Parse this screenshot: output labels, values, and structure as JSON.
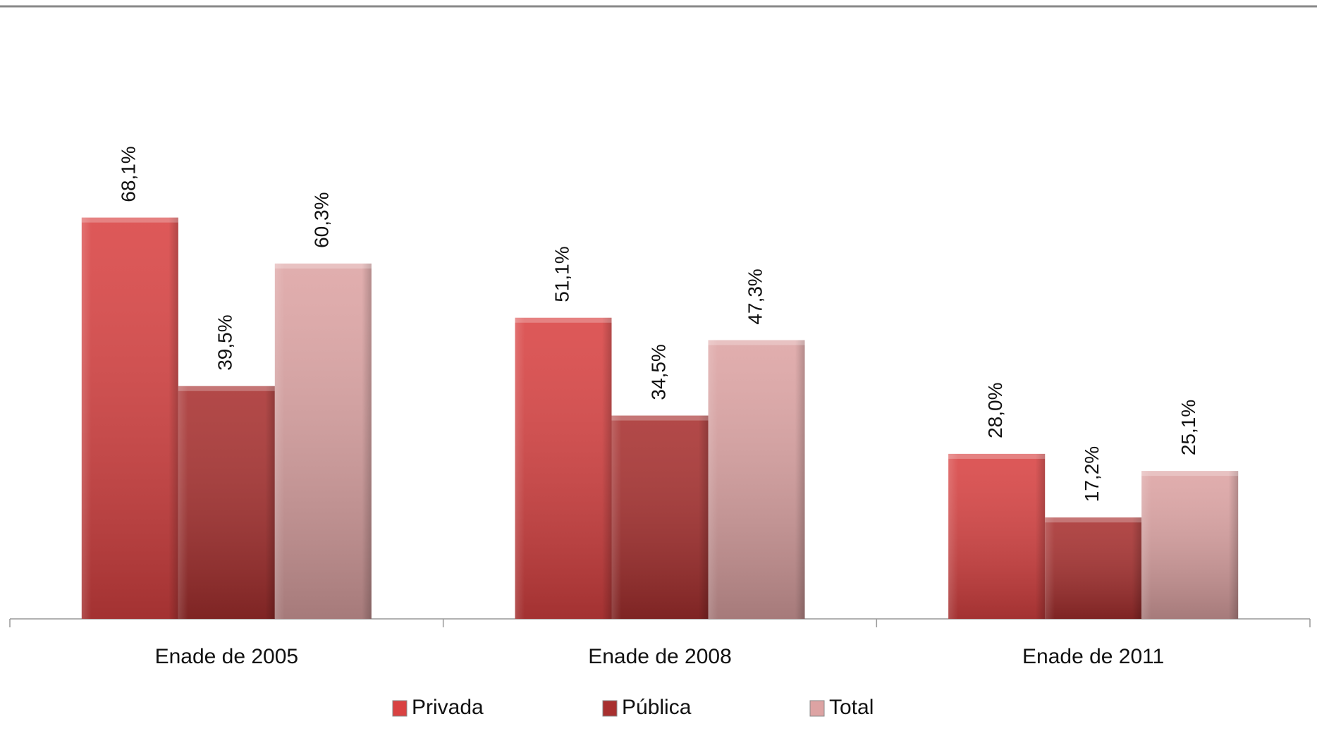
{
  "chart_data": {
    "type": "bar",
    "categories": [
      "Enade de 2005",
      "Enade de 2008",
      "Enade de 2011"
    ],
    "series": [
      {
        "name": "Privada",
        "color": "#d94242",
        "values": [
          68.1,
          51.1,
          28.0
        ],
        "value_labels": [
          "68,1%",
          "51,1%",
          "28,0%"
        ]
      },
      {
        "name": "Pública",
        "color": "#a8302f",
        "values": [
          39.5,
          34.5,
          17.2
        ],
        "value_labels": [
          "39,5%",
          "34,5%",
          "17,2%"
        ]
      },
      {
        "name": "Total",
        "color": "#dda3a3",
        "values": [
          60.3,
          47.3,
          25.1
        ],
        "value_labels": [
          "60,3%",
          "47,3%",
          "25,1%"
        ]
      }
    ],
    "ylim": [
      0,
      100
    ],
    "legend": "bottom"
  }
}
